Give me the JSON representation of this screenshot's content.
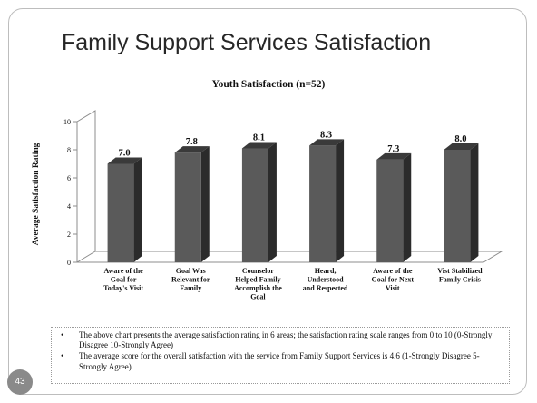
{
  "slide": {
    "title": "Family Support Services Satisfaction",
    "page_number": "43"
  },
  "chart_data": {
    "type": "bar",
    "title": "Youth Satisfaction (n=52)",
    "xlabel": "",
    "ylabel": "Average Satisfaction Rating",
    "ylim": [
      0,
      10
    ],
    "yticks": [
      0,
      2,
      4,
      6,
      8,
      10
    ],
    "categories": [
      [
        "Aware of the",
        "Goal for",
        "Today's Visit"
      ],
      [
        "Goal Was",
        "Relevant for",
        "Family"
      ],
      [
        "Counselor",
        "Helped Family",
        "Accomplish the",
        "Goal"
      ],
      [
        "Heard,",
        "Understood",
        "and Respected"
      ],
      [
        "Aware of the",
        "Goal for Next",
        "Visit"
      ],
      [
        "Vist Stabilized",
        "Family Crisis"
      ]
    ],
    "values": [
      7.0,
      7.8,
      8.1,
      8.3,
      7.3,
      8.0
    ],
    "data_labels": [
      "7.0",
      "7.8",
      "8.1",
      "8.3",
      "7.3",
      "8.0"
    ],
    "style": "3d-bar",
    "bar_color": "#5a5a5a",
    "grid": false
  },
  "notes": [
    "The above chart presents the average satisfaction rating in 6 areas; the satisfaction rating scale ranges from 0 to 10 (0-Strongly Disagree 10-Strongly Agree)",
    "The average score for the overall satisfaction with the service from Family Support Services is 4.6 (1-Strongly Disagree 5-Strongly Agree)"
  ],
  "bullet_symbol": "•"
}
